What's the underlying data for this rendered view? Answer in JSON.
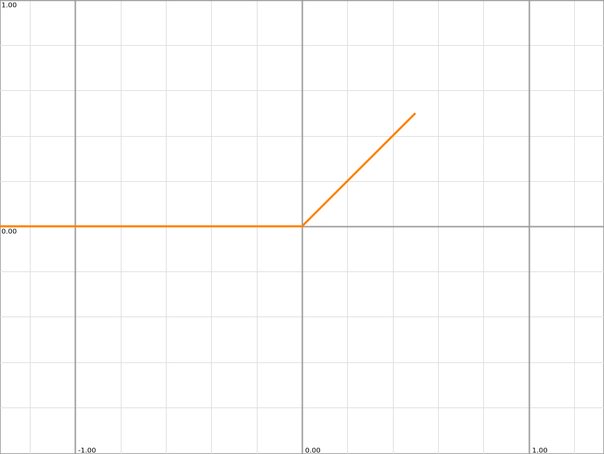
{
  "chart_data": {
    "type": "line",
    "x": [
      -1.332,
      0,
      0.5
    ],
    "series": [
      {
        "color": "#ff8000",
        "values": [
          0,
          0,
          0.5
        ]
      }
    ],
    "xlim": [
      -1.332,
      1.332
    ],
    "ylim": [
      -1.006,
      1.0
    ],
    "xticks": [
      {
        "value": -1,
        "label": "-1.00"
      },
      {
        "value": 0,
        "label": "0.00"
      },
      {
        "value": 1,
        "label": "1.00"
      }
    ],
    "yticks": [
      {
        "value": 0,
        "label": "0.00"
      },
      {
        "value": 1,
        "label": "1.00"
      }
    ],
    "minor_xticks": [
      -1.2,
      -0.8,
      -0.6,
      -0.4,
      -0.2,
      0.2,
      0.4,
      0.6,
      0.8,
      1.2
    ],
    "minor_yticks": [
      -0.8,
      -0.6,
      -0.4,
      -0.2,
      0.2,
      0.4,
      0.6,
      0.8
    ],
    "grid": true
  }
}
